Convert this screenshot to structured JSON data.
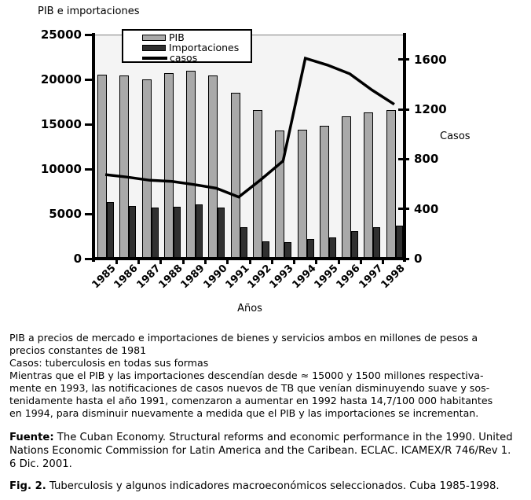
{
  "title": "PIB e importaciones",
  "chart_data": {
    "type": "bar",
    "title": "PIB e importaciones",
    "categories": [
      "1985",
      "1986",
      "1987",
      "1988",
      "1989",
      "1990",
      "1991",
      "1992",
      "1993",
      "1994",
      "1995",
      "1996",
      "1997",
      "1998"
    ],
    "series": [
      {
        "name": "PIB",
        "kind": "bar",
        "axis": "left",
        "color": "#a9a9a9",
        "values": [
          20500,
          20400,
          20000,
          20700,
          21000,
          20400,
          18500,
          16600,
          14300,
          14400,
          14800,
          15900,
          16300,
          16600
        ]
      },
      {
        "name": "Importaciones",
        "kind": "bar",
        "axis": "left",
        "color": "#303030",
        "values": [
          6300,
          5850,
          5700,
          5800,
          6100,
          5700,
          3500,
          1950,
          1850,
          2200,
          2400,
          3100,
          3500,
          3700
        ]
      },
      {
        "name": "casos",
        "kind": "line",
        "axis": "right",
        "color": "#000000",
        "values": [
          675,
          655,
          630,
          620,
          595,
          565,
          495,
          635,
          785,
          1610,
          1555,
          1485,
          1355,
          1240
        ]
      }
    ],
    "xlabel": "Años",
    "left_axis": {
      "ticks": [
        0,
        5000,
        10000,
        15000,
        20000,
        25000
      ],
      "max": 25000
    },
    "right_axis": {
      "label": "Casos",
      "ticks": [
        0,
        400,
        800,
        1200,
        1600
      ],
      "max": 1800
    },
    "legend_position": "top-inside",
    "grid": false
  },
  "notes": {
    "lines": [
      "PIB a precios de mercado e importaciones de bienes y servicios ambos en millones de pesos a",
      "precios constantes de 1981",
      "Casos: tuberculosis en todas sus formas",
      "Mientras que el PIB y las importaciones descendían desde ≈ 15000 y 1500 millones respectiva-",
      "mente en 1993, las notificaciones de casos nuevos de TB que venían disminuyendo suave y sos-",
      "tenidamente hasta el año 1991, comenzaron a aumentar en 1992 hasta 14,7/100 000 habitantes",
      "en 1994, para disminuir nuevamente a medida que el PIB y las importaciones se incrementan."
    ]
  },
  "fuente": {
    "label": "Fuente:",
    "lines": [
      "The Cuban Economy. Structural reforms and economic performance in the 1990. United",
      "Nations Economic Commission for Latin America and the Caribean. ECLAC. ICAMEX/R 746/Rev 1.",
      "6 Dic. 2001."
    ]
  },
  "fig": {
    "label": "Fig. 2.",
    "text": "Tuberculosis y algunos indicadores macroeconómicos seleccionados. Cuba 1985-1998."
  }
}
